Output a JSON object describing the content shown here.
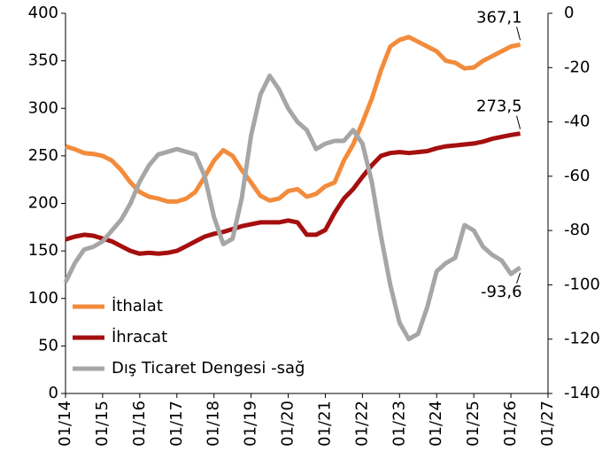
{
  "chart_data": {
    "type": "line",
    "x": [
      "01/14",
      "04/14",
      "07/14",
      "10/14",
      "01/15",
      "04/15",
      "07/15",
      "10/15",
      "01/16",
      "04/16",
      "07/16",
      "10/16",
      "01/17",
      "04/17",
      "07/17",
      "10/17",
      "01/18",
      "04/18",
      "07/18",
      "10/18",
      "01/19",
      "04/19",
      "07/19",
      "10/19",
      "01/20",
      "04/20",
      "07/20",
      "10/20",
      "01/21",
      "04/21",
      "07/21",
      "10/21",
      "01/22",
      "04/22",
      "07/22",
      "10/22",
      "01/23",
      "04/23",
      "07/23",
      "10/23",
      "01/24",
      "04/24",
      "07/24",
      "10/24",
      "01/25",
      "04/25",
      "07/25",
      "10/25",
      "01/26",
      "04/26"
    ],
    "series": [
      {
        "name": "İthalat",
        "color": "#f28c3c",
        "values": [
          260,
          257,
          253,
          252,
          250,
          245,
          235,
          222,
          212,
          207,
          205,
          202,
          202,
          205,
          212,
          228,
          245,
          256,
          250,
          235,
          222,
          208,
          203,
          205,
          213,
          215,
          207,
          210,
          218,
          222,
          245,
          262,
          285,
          310,
          340,
          365,
          372,
          375,
          370,
          365,
          360,
          350,
          348,
          342,
          343,
          350,
          355,
          360,
          365,
          367.1
        ]
      },
      {
        "name": "İhracat",
        "color": "#a50f0f",
        "values": [
          162,
          165,
          167,
          166,
          163,
          160,
          155,
          150,
          147,
          148,
          147,
          148,
          150,
          155,
          160,
          165,
          168,
          170,
          173,
          176,
          178,
          180,
          180,
          180,
          182,
          180,
          167,
          167,
          172,
          190,
          205,
          215,
          228,
          240,
          250,
          253,
          254,
          253,
          254,
          255,
          258,
          260,
          261,
          262,
          263,
          265,
          268,
          270,
          272,
          273.5
        ]
      },
      {
        "name": "Dış Ticaret Dengesi -sağ",
        "color": "#a6a6a6",
        "axis": "y2",
        "values": [
          -99,
          -92,
          -87,
          -86,
          -84,
          -80,
          -76,
          -70,
          -62,
          -56,
          -52,
          -51,
          -50,
          -51,
          -52,
          -60,
          -75,
          -85,
          -83,
          -68,
          -45,
          -30,
          -23,
          -28,
          -35,
          -40,
          -43,
          -50,
          -48,
          -47,
          -47,
          -43,
          -48,
          -62,
          -82,
          -100,
          -114,
          -120,
          -118,
          -108,
          -95,
          -92,
          -90,
          -78,
          -80,
          -86,
          -89,
          -91,
          -96,
          -93.6
        ]
      }
    ],
    "annotations": [
      {
        "text": "367,1",
        "series": 0
      },
      {
        "text": "273,5",
        "series": 1
      },
      {
        "text": "-93,6",
        "series": 2
      }
    ],
    "xticks": [
      "01/14",
      "01/15",
      "01/16",
      "01/17",
      "01/18",
      "01/19",
      "01/20",
      "01/21",
      "01/22",
      "01/23",
      "01/24",
      "01/25",
      "01/26",
      "01/27"
    ],
    "ylim": [
      0,
      400
    ],
    "yticks": [
      0,
      50,
      100,
      150,
      200,
      250,
      300,
      350,
      400
    ],
    "y2lim": [
      -140,
      0
    ],
    "y2ticks": [
      -140,
      -120,
      -100,
      -80,
      -60,
      -40,
      -20,
      0
    ],
    "legend": "lower left"
  }
}
